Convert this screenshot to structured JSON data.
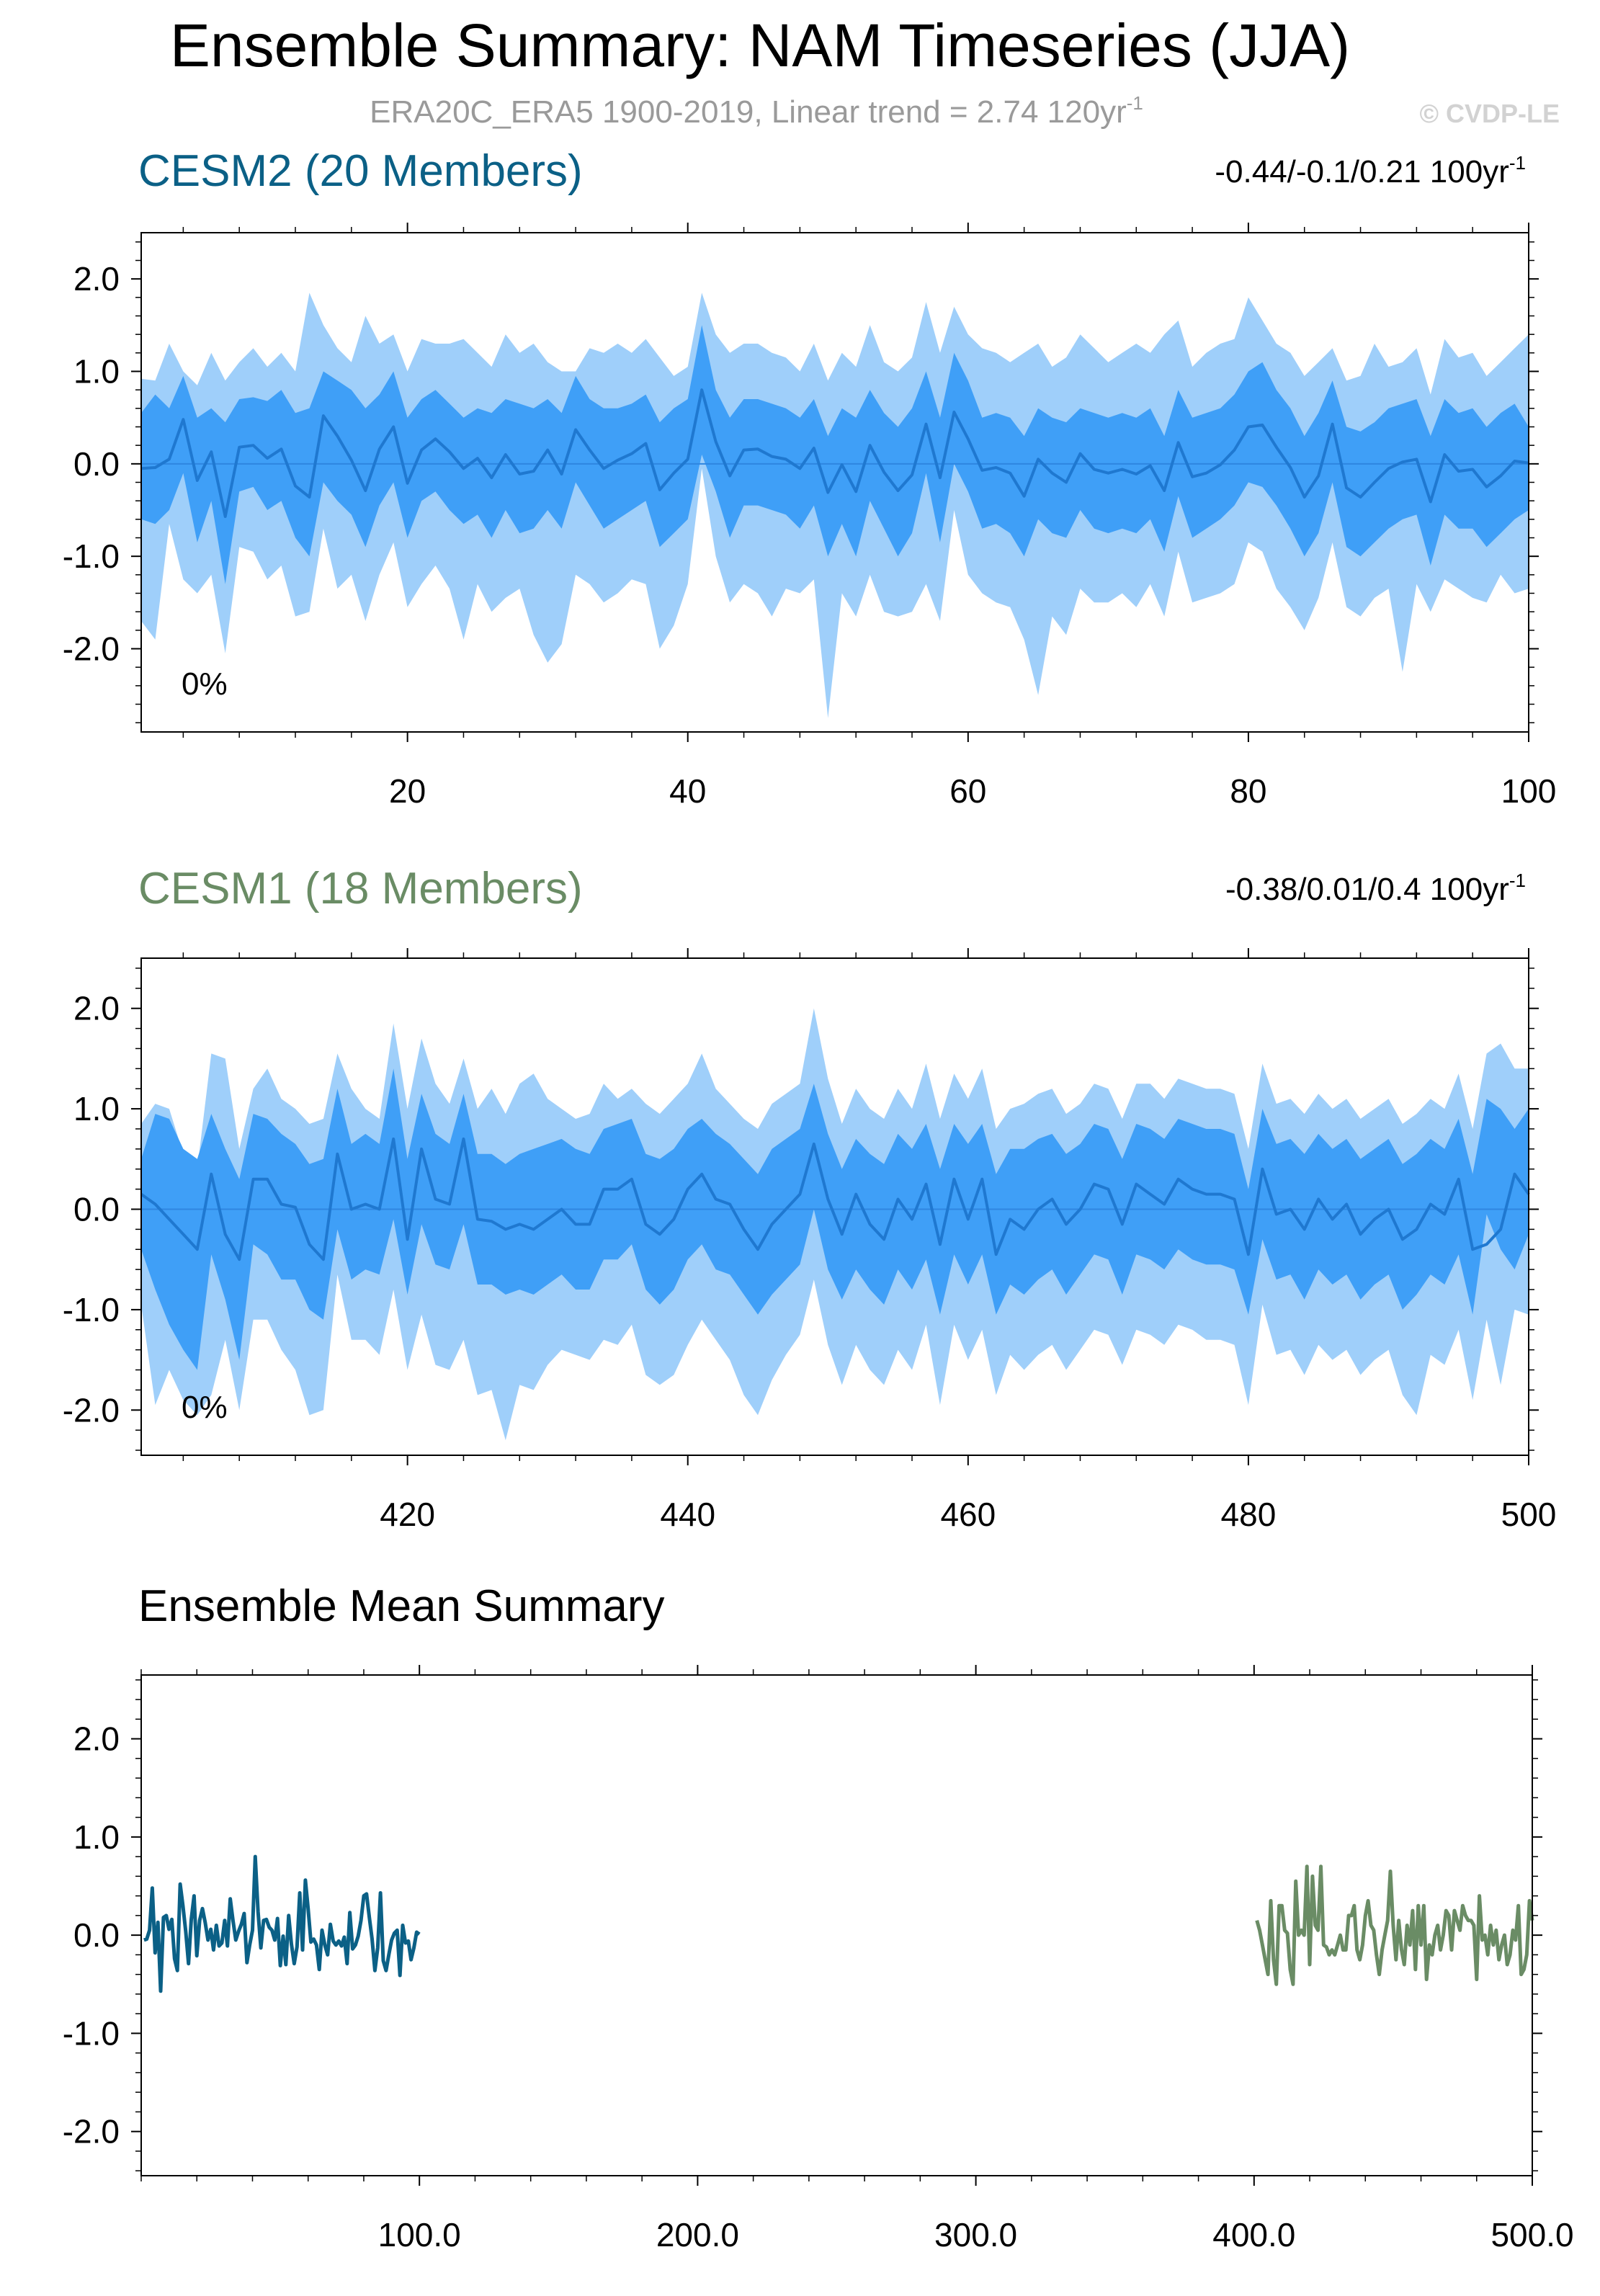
{
  "title": "Ensemble Summary: NAM Timeseries (JJA)",
  "subtitle": "ERA20C_ERA5 1900-2019, Linear trend = 2.74 120yr",
  "subtitle_sup": "-1",
  "credit": "© CVDP-LE",
  "colors": {
    "text": "#000000",
    "cesm2": "#0b6086",
    "cesm1": "#6a8c65",
    "band_outer": "#9fcffa",
    "band_inner": "#3f9ff7",
    "mean_line": "#1f78d0",
    "zero_line": "#2f86e0",
    "subtitle": "#9a9a9a",
    "credit": "#d2d2d2"
  },
  "chart_data": [
    {
      "type": "area",
      "label": "CESM2 (20 Members)",
      "trend_text": "-0.44/-0.1/0.21 100yr",
      "trend_sup": "-1",
      "percent_text": "0%",
      "x_start": 1,
      "x_end": 100,
      "xlim": [
        1,
        100
      ],
      "ylim": [
        -2.9,
        2.5
      ],
      "xticks": [
        20,
        40,
        60,
        80,
        100
      ],
      "xtick_labels": [
        "20",
        "40",
        "60",
        "80",
        "100"
      ],
      "yticks": [
        2.0,
        1.0,
        0.0,
        -1.0,
        -2.0
      ],
      "ytick_labels": [
        "2.0",
        "1.0",
        "0.0",
        "-1.0",
        "-2.0"
      ],
      "mean": [
        -0.05,
        -0.04,
        0.05,
        0.48,
        -0.18,
        0.13,
        -0.57,
        0.18,
        0.2,
        0.06,
        0.16,
        -0.24,
        -0.36,
        0.52,
        0.3,
        0.04,
        -0.29,
        0.16,
        0.4,
        -0.21,
        0.15,
        0.27,
        0.13,
        -0.05,
        0.06,
        -0.15,
        0.1,
        -0.11,
        -0.08,
        0.15,
        -0.11,
        0.37,
        0.15,
        -0.05,
        0.04,
        0.11,
        0.22,
        -0.28,
        -0.1,
        0.05,
        0.8,
        0.24,
        -0.13,
        0.15,
        0.16,
        0.08,
        0.05,
        -0.05,
        0.17,
        -0.31,
        -0.01,
        -0.3,
        0.2,
        -0.09,
        -0.29,
        -0.12,
        0.43,
        -0.15,
        0.56,
        0.27,
        -0.07,
        -0.04,
        -0.1,
        -0.35,
        0.05,
        -0.1,
        -0.2,
        0.11,
        -0.06,
        -0.1,
        -0.06,
        -0.11,
        -0.02,
        -0.29,
        0.23,
        -0.14,
        -0.1,
        -0.01,
        0.15,
        0.4,
        0.42,
        0.18,
        -0.04,
        -0.36,
        -0.13,
        0.43,
        -0.26,
        -0.36,
        -0.2,
        -0.05,
        0.02,
        0.05,
        -0.41,
        0.1,
        -0.08,
        -0.06,
        -0.25,
        -0.13,
        0.03,
        0.01
      ],
      "inner_upper": [
        0.55,
        0.75,
        0.6,
        0.95,
        0.5,
        0.6,
        0.45,
        0.7,
        0.72,
        0.68,
        0.8,
        0.55,
        0.6,
        1.0,
        0.9,
        0.8,
        0.6,
        0.75,
        1.0,
        0.5,
        0.7,
        0.8,
        0.65,
        0.5,
        0.6,
        0.55,
        0.7,
        0.65,
        0.6,
        0.7,
        0.55,
        0.95,
        0.7,
        0.6,
        0.6,
        0.65,
        0.75,
        0.45,
        0.6,
        0.7,
        1.5,
        0.8,
        0.5,
        0.7,
        0.7,
        0.65,
        0.6,
        0.5,
        0.7,
        0.3,
        0.6,
        0.5,
        0.8,
        0.55,
        0.4,
        0.6,
        1.0,
        0.5,
        1.2,
        0.9,
        0.5,
        0.55,
        0.5,
        0.3,
        0.6,
        0.5,
        0.45,
        0.6,
        0.55,
        0.5,
        0.55,
        0.5,
        0.6,
        0.3,
        0.8,
        0.5,
        0.55,
        0.6,
        0.75,
        1.0,
        1.1,
        0.8,
        0.6,
        0.3,
        0.55,
        0.9,
        0.4,
        0.35,
        0.45,
        0.6,
        0.65,
        0.7,
        0.3,
        0.7,
        0.55,
        0.6,
        0.4,
        0.55,
        0.65,
        0.4
      ],
      "inner_lower": [
        -0.6,
        -0.65,
        -0.5,
        -0.1,
        -0.85,
        -0.4,
        -1.3,
        -0.3,
        -0.25,
        -0.5,
        -0.4,
        -0.8,
        -1.0,
        -0.2,
        -0.4,
        -0.55,
        -0.9,
        -0.45,
        -0.2,
        -0.8,
        -0.4,
        -0.3,
        -0.5,
        -0.65,
        -0.55,
        -0.8,
        -0.5,
        -0.75,
        -0.7,
        -0.5,
        -0.7,
        -0.2,
        -0.45,
        -0.7,
        -0.6,
        -0.5,
        -0.4,
        -0.9,
        -0.75,
        -0.6,
        0.1,
        -0.3,
        -0.8,
        -0.45,
        -0.45,
        -0.5,
        -0.55,
        -0.7,
        -0.45,
        -1.0,
        -0.65,
        -1.0,
        -0.4,
        -0.7,
        -1.0,
        -0.75,
        -0.1,
        -0.85,
        0.0,
        -0.3,
        -0.7,
        -0.65,
        -0.75,
        -1.0,
        -0.6,
        -0.75,
        -0.8,
        -0.5,
        -0.7,
        -0.75,
        -0.7,
        -0.75,
        -0.6,
        -0.95,
        -0.35,
        -0.8,
        -0.7,
        -0.6,
        -0.45,
        -0.2,
        -0.25,
        -0.45,
        -0.7,
        -1.0,
        -0.75,
        -0.2,
        -0.9,
        -1.0,
        -0.85,
        -0.7,
        -0.6,
        -0.55,
        -1.1,
        -0.55,
        -0.7,
        -0.7,
        -0.9,
        -0.75,
        -0.6,
        -0.5
      ],
      "outer_upper": [
        0.92,
        0.9,
        1.3,
        1.0,
        0.85,
        1.2,
        0.9,
        1.1,
        1.25,
        1.05,
        1.2,
        1.0,
        1.85,
        1.5,
        1.25,
        1.1,
        1.6,
        1.3,
        1.4,
        1.0,
        1.35,
        1.3,
        1.3,
        1.35,
        1.2,
        1.05,
        1.4,
        1.2,
        1.3,
        1.1,
        1.0,
        1.0,
        1.25,
        1.2,
        1.3,
        1.2,
        1.35,
        1.15,
        0.95,
        1.05,
        1.85,
        1.4,
        1.2,
        1.3,
        1.3,
        1.2,
        1.15,
        1.0,
        1.3,
        0.9,
        1.2,
        1.05,
        1.5,
        1.1,
        1.0,
        1.15,
        1.75,
        1.2,
        1.7,
        1.4,
        1.25,
        1.2,
        1.1,
        1.2,
        1.3,
        1.05,
        1.15,
        1.4,
        1.25,
        1.1,
        1.2,
        1.3,
        1.2,
        1.4,
        1.55,
        1.05,
        1.2,
        1.3,
        1.35,
        1.8,
        1.55,
        1.3,
        1.2,
        0.95,
        1.1,
        1.25,
        0.9,
        0.95,
        1.3,
        1.05,
        1.1,
        1.25,
        0.75,
        1.35,
        1.15,
        1.2,
        0.95,
        1.1,
        1.25,
        1.4
      ],
      "outer_lower": [
        -1.7,
        -1.9,
        -0.65,
        -1.25,
        -1.4,
        -1.2,
        -2.05,
        -0.9,
        -0.95,
        -1.25,
        -1.1,
        -1.65,
        -1.6,
        -0.7,
        -1.35,
        -1.2,
        -1.7,
        -1.2,
        -0.85,
        -1.55,
        -1.3,
        -1.1,
        -1.35,
        -1.9,
        -1.3,
        -1.6,
        -1.45,
        -1.35,
        -1.85,
        -2.15,
        -1.95,
        -1.2,
        -1.3,
        -1.5,
        -1.4,
        -1.25,
        -1.3,
        -2.0,
        -1.75,
        -1.3,
        -0.05,
        -1.0,
        -1.5,
        -1.3,
        -1.4,
        -1.65,
        -1.35,
        -1.4,
        -1.25,
        -2.75,
        -1.4,
        -1.65,
        -1.2,
        -1.6,
        -1.65,
        -1.6,
        -1.3,
        -1.7,
        -0.5,
        -1.2,
        -1.4,
        -1.5,
        -1.55,
        -1.9,
        -2.5,
        -1.65,
        -1.85,
        -1.35,
        -1.5,
        -1.5,
        -1.4,
        -1.55,
        -1.3,
        -1.65,
        -0.95,
        -1.5,
        -1.45,
        -1.4,
        -1.3,
        -0.85,
        -0.95,
        -1.35,
        -1.55,
        -1.8,
        -1.45,
        -0.85,
        -1.55,
        -1.65,
        -1.45,
        -1.35,
        -2.25,
        -1.3,
        -1.6,
        -1.25,
        -1.35,
        -1.45,
        -1.5,
        -1.2,
        -1.4,
        -1.35
      ],
      "series_color_key": "cesm2"
    },
    {
      "type": "area",
      "label": "CESM1 (18 Members)",
      "trend_text": "-0.38/0.01/0.4 100yr",
      "trend_sup": "-1",
      "percent_text": "0%",
      "x_start": 401,
      "x_end": 500,
      "xlim": [
        401,
        500
      ],
      "ylim": [
        -2.45,
        2.5
      ],
      "xticks": [
        420,
        440,
        460,
        480,
        500
      ],
      "xtick_labels": [
        "420",
        "440",
        "460",
        "480",
        "500"
      ],
      "yticks": [
        2.0,
        1.0,
        0.0,
        -1.0,
        -2.0
      ],
      "ytick_labels": [
        "2.0",
        "1.0",
        "0.0",
        "-1.0",
        "-2.0"
      ],
      "mean": [
        0.15,
        0.05,
        -0.1,
        -0.25,
        -0.4,
        0.35,
        -0.25,
        -0.5,
        0.3,
        0.3,
        0.05,
        0.02,
        -0.35,
        -0.5,
        0.55,
        0.0,
        0.05,
        0.0,
        0.7,
        -0.3,
        0.6,
        0.1,
        0.05,
        0.7,
        -0.1,
        -0.12,
        -0.2,
        -0.15,
        -0.2,
        -0.1,
        0.0,
        -0.15,
        -0.15,
        0.2,
        0.2,
        0.3,
        -0.15,
        -0.25,
        -0.1,
        0.2,
        0.35,
        0.1,
        0.05,
        -0.2,
        -0.4,
        -0.15,
        0.0,
        0.15,
        0.65,
        0.1,
        -0.25,
        0.15,
        -0.15,
        -0.3,
        0.1,
        -0.1,
        0.25,
        -0.35,
        0.3,
        -0.1,
        0.3,
        -0.45,
        -0.1,
        -0.2,
        0.0,
        0.1,
        -0.15,
        0.0,
        0.25,
        0.2,
        -0.15,
        0.25,
        0.15,
        0.05,
        0.3,
        0.2,
        0.15,
        0.15,
        0.1,
        -0.45,
        0.4,
        -0.05,
        0.0,
        -0.2,
        0.1,
        -0.1,
        0.05,
        -0.25,
        -0.1,
        0.0,
        -0.3,
        -0.2,
        0.05,
        -0.05,
        0.3,
        -0.4,
        -0.35,
        -0.2,
        0.35,
        0.15
      ],
      "inner_upper": [
        0.5,
        0.95,
        0.9,
        0.6,
        0.5,
        0.95,
        0.6,
        0.3,
        0.95,
        0.9,
        0.75,
        0.65,
        0.45,
        0.5,
        1.2,
        0.65,
        0.75,
        0.65,
        1.4,
        0.5,
        1.15,
        0.75,
        0.65,
        1.15,
        0.55,
        0.55,
        0.45,
        0.55,
        0.6,
        0.65,
        0.7,
        0.6,
        0.55,
        0.8,
        0.85,
        0.9,
        0.55,
        0.5,
        0.6,
        0.8,
        0.9,
        0.75,
        0.65,
        0.5,
        0.35,
        0.6,
        0.7,
        0.8,
        1.25,
        0.75,
        0.4,
        0.7,
        0.55,
        0.45,
        0.75,
        0.6,
        0.85,
        0.4,
        0.85,
        0.65,
        0.85,
        0.35,
        0.6,
        0.6,
        0.7,
        0.75,
        0.55,
        0.65,
        0.85,
        0.8,
        0.5,
        0.85,
        0.8,
        0.7,
        0.9,
        0.85,
        0.8,
        0.8,
        0.75,
        0.2,
        1.0,
        0.65,
        0.7,
        0.55,
        0.75,
        0.6,
        0.7,
        0.5,
        0.6,
        0.7,
        0.45,
        0.55,
        0.7,
        0.6,
        0.9,
        0.35,
        1.1,
        1.0,
        0.8,
        1.0
      ],
      "inner_lower": [
        -0.4,
        -0.8,
        -1.15,
        -1.4,
        -1.6,
        -0.45,
        -0.9,
        -1.5,
        -0.35,
        -0.45,
        -0.7,
        -0.7,
        -1.0,
        -1.1,
        -0.2,
        -0.7,
        -0.6,
        -0.65,
        -0.1,
        -0.85,
        -0.15,
        -0.55,
        -0.6,
        -0.15,
        -0.75,
        -0.75,
        -0.85,
        -0.8,
        -0.85,
        -0.75,
        -0.65,
        -0.8,
        -0.8,
        -0.5,
        -0.5,
        -0.35,
        -0.8,
        -0.95,
        -0.8,
        -0.5,
        -0.35,
        -0.6,
        -0.65,
        -0.85,
        -1.05,
        -0.85,
        -0.7,
        -0.55,
        0.0,
        -0.6,
        -0.9,
        -0.6,
        -0.8,
        -0.95,
        -0.6,
        -0.8,
        -0.5,
        -1.05,
        -0.45,
        -0.75,
        -0.45,
        -1.05,
        -0.75,
        -0.85,
        -0.7,
        -0.6,
        -0.85,
        -0.65,
        -0.45,
        -0.5,
        -0.85,
        -0.45,
        -0.5,
        -0.6,
        -0.4,
        -0.5,
        -0.55,
        -0.55,
        -0.6,
        -1.05,
        -0.3,
        -0.7,
        -0.65,
        -0.9,
        -0.6,
        -0.75,
        -0.65,
        -0.9,
        -0.75,
        -0.65,
        -1.0,
        -0.85,
        -0.65,
        -0.75,
        -0.45,
        -1.05,
        -0.05,
        -0.4,
        -0.6,
        -0.25
      ],
      "outer_upper": [
        0.85,
        1.05,
        1.0,
        0.55,
        0.4,
        1.55,
        1.5,
        0.6,
        1.2,
        1.4,
        1.1,
        1.0,
        0.85,
        0.9,
        1.55,
        1.2,
        1.0,
        0.9,
        1.85,
        1.0,
        1.7,
        1.25,
        1.05,
        1.5,
        1.0,
        1.2,
        0.95,
        1.25,
        1.35,
        1.1,
        1.0,
        0.9,
        0.95,
        1.25,
        1.1,
        1.2,
        1.05,
        0.95,
        1.1,
        1.25,
        1.55,
        1.2,
        1.05,
        0.9,
        0.8,
        1.05,
        1.15,
        1.25,
        2.0,
        1.3,
        0.85,
        1.2,
        1.0,
        0.9,
        1.2,
        1.0,
        1.45,
        0.9,
        1.35,
        1.1,
        1.4,
        0.8,
        1.0,
        1.05,
        1.15,
        1.2,
        0.95,
        1.05,
        1.25,
        1.2,
        0.9,
        1.25,
        1.25,
        1.1,
        1.3,
        1.25,
        1.2,
        1.2,
        1.15,
        0.6,
        1.45,
        1.05,
        1.1,
        0.95,
        1.15,
        1.0,
        1.1,
        0.9,
        1.0,
        1.1,
        0.85,
        0.95,
        1.1,
        1.0,
        1.35,
        0.8,
        1.55,
        1.65,
        1.4,
        1.4
      ],
      "outer_lower": [
        -0.95,
        -1.95,
        -1.6,
        -1.9,
        -2.05,
        -1.85,
        -1.3,
        -2.0,
        -1.1,
        -1.1,
        -1.4,
        -1.6,
        -2.05,
        -2.0,
        -0.65,
        -1.3,
        -1.3,
        -1.45,
        -0.8,
        -1.6,
        -1.05,
        -1.55,
        -1.6,
        -1.3,
        -1.85,
        -1.8,
        -2.3,
        -1.75,
        -1.8,
        -1.55,
        -1.4,
        -1.45,
        -1.5,
        -1.3,
        -1.35,
        -1.15,
        -1.65,
        -1.75,
        -1.65,
        -1.35,
        -1.1,
        -1.3,
        -1.5,
        -1.85,
        -2.05,
        -1.7,
        -1.45,
        -1.25,
        -0.7,
        -1.35,
        -1.75,
        -1.35,
        -1.6,
        -1.75,
        -1.4,
        -1.6,
        -1.15,
        -1.95,
        -1.15,
        -1.5,
        -1.2,
        -1.85,
        -1.45,
        -1.6,
        -1.45,
        -1.35,
        -1.6,
        -1.4,
        -1.2,
        -1.25,
        -1.55,
        -1.2,
        -1.25,
        -1.35,
        -1.15,
        -1.2,
        -1.3,
        -1.3,
        -1.35,
        -1.95,
        -0.95,
        -1.45,
        -1.4,
        -1.65,
        -1.35,
        -1.5,
        -1.4,
        -1.65,
        -1.5,
        -1.4,
        -1.85,
        -2.05,
        -1.45,
        -1.55,
        -1.2,
        -1.9,
        -1.1,
        -1.75,
        -1.0,
        -1.05
      ],
      "series_color_key": "cesm1"
    },
    {
      "type": "line",
      "label": "Ensemble Mean Summary",
      "xlim": [
        0,
        500
      ],
      "ylim": [
        -2.45,
        2.65
      ],
      "xticks": [
        100,
        200,
        300,
        400,
        500
      ],
      "xtick_labels": [
        "100.0",
        "200.0",
        "300.0",
        "400.0",
        "500.0"
      ],
      "yticks": [
        2.0,
        1.0,
        0.0,
        -1.0,
        -2.0
      ],
      "ytick_labels": [
        "2.0",
        "1.0",
        "0.0",
        "-1.0",
        "-2.0"
      ],
      "series": [
        {
          "name": "CESM2",
          "color_key": "cesm2",
          "x_start": 1,
          "ref": 0
        },
        {
          "name": "CESM1",
          "color_key": "cesm1",
          "x_start": 401,
          "ref": 1
        }
      ]
    }
  ]
}
